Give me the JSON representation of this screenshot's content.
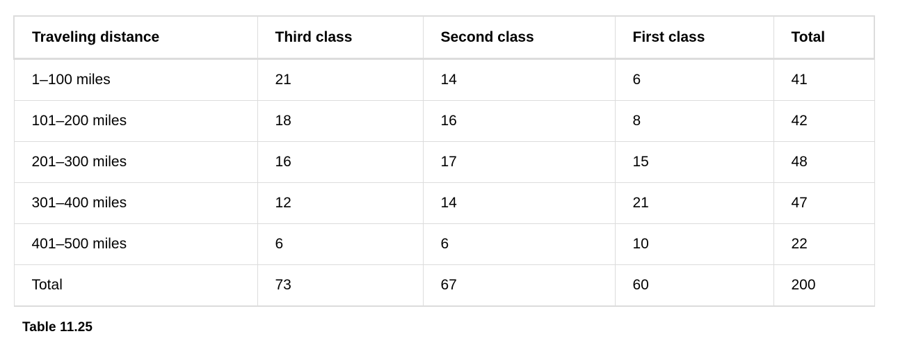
{
  "table": {
    "headers": [
      "Traveling distance",
      "Third class",
      "Second class",
      "First class",
      "Total"
    ],
    "rows": [
      [
        "1–100 miles",
        "21",
        "14",
        "6",
        "41"
      ],
      [
        "101–200 miles",
        "18",
        "16",
        "8",
        "42"
      ],
      [
        "201–300 miles",
        "16",
        "17",
        "15",
        "48"
      ],
      [
        "301–400 miles",
        "12",
        "14",
        "21",
        "47"
      ],
      [
        "401–500 miles",
        "6",
        "6",
        "10",
        "22"
      ],
      [
        "Total",
        "73",
        "67",
        "60",
        "200"
      ]
    ]
  },
  "caption": "Table  11.25"
}
